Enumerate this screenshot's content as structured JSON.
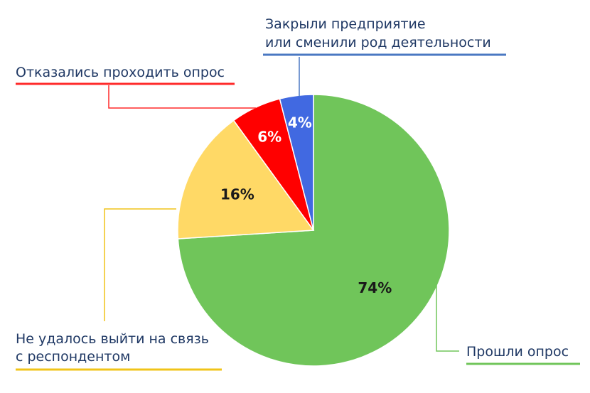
{
  "chart_data": {
    "type": "pie",
    "title": "",
    "slices": [
      {
        "label": "Прошли опрос",
        "value": 74,
        "value_label": "74%",
        "color": "#70c55a",
        "value_label_color": "#1a1a1a"
      },
      {
        "label_lines": [
          "Не удалось выйти на связь",
          "с респондентом"
        ],
        "value": 16,
        "value_label": "16%",
        "color": "#ffd966",
        "value_label_color": "#1a1a1a"
      },
      {
        "label": "Отказались проходить опрос",
        "value": 6,
        "value_label": "6%",
        "color": "#ff0000",
        "value_label_color": "#ffffff"
      },
      {
        "label_lines": [
          "Закрыли предприятие",
          "или сменили род деятельности"
        ],
        "value": 4,
        "value_label": "4%",
        "color": "#4169e1",
        "value_label_color": "#ffffff"
      }
    ],
    "leader_colors": {
      "passed": "#70c55a",
      "no_contact": "#f0c419",
      "refused": "#ff2a2a",
      "closed": "#4a78c2"
    }
  }
}
